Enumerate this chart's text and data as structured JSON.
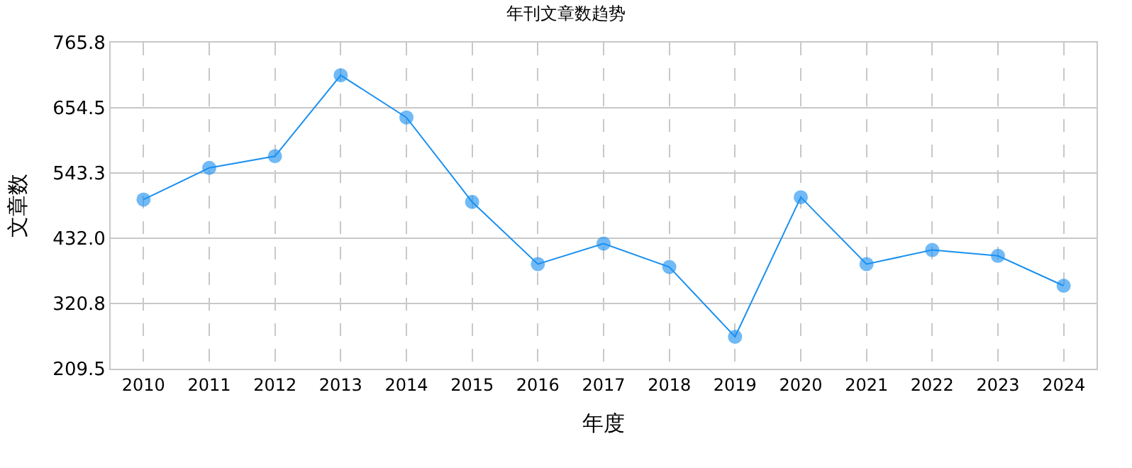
{
  "chart_data": {
    "type": "line",
    "title": "年刊文章数趋势",
    "xlabel": "年度",
    "ylabel": "文章数",
    "categories": [
      "2010",
      "2011",
      "2012",
      "2013",
      "2014",
      "2015",
      "2016",
      "2017",
      "2018",
      "2019",
      "2020",
      "2021",
      "2022",
      "2023",
      "2024"
    ],
    "series": [
      {
        "color": "#1a90f0",
        "values": [
          498,
          552,
          572,
          710,
          638,
          494,
          388,
          423,
          383,
          264,
          502,
          388,
          412,
          402,
          351
        ]
      }
    ],
    "ylim": [
      209.5,
      765.8
    ],
    "yticks": [
      {
        "value": 209.5,
        "label": "209.5"
      },
      {
        "value": 320.8,
        "label": "320.8"
      },
      {
        "value": 432.0,
        "label": "432.0"
      },
      {
        "value": 543.3,
        "label": "543.3"
      },
      {
        "value": 654.5,
        "label": "654.5"
      },
      {
        "value": 765.8,
        "label": "765.8"
      }
    ],
    "grid": true,
    "marker": "circle",
    "line_style": "solid",
    "legend": false
  }
}
